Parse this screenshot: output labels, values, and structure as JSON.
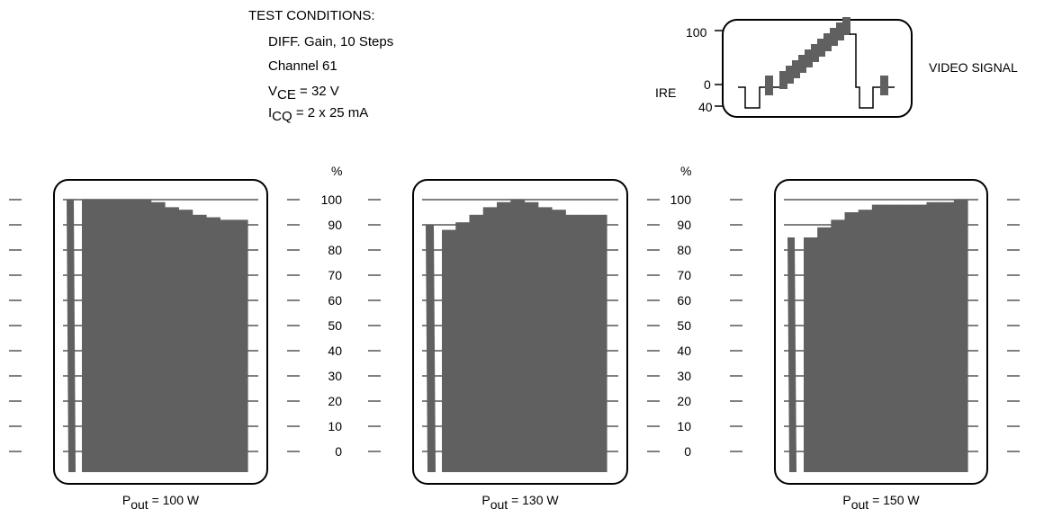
{
  "test_conditions": {
    "heading": "TEST CONDITIONS:",
    "line1": "DIFF. Gain, 10 Steps",
    "line2": "Channel 61",
    "vce_label": "V",
    "vce_sub": "CE",
    "vce_value": " = 32 V",
    "icq_label": "I",
    "icq_sub": "CQ",
    "icq_value": " = 2 x 25 mA"
  },
  "video_signal": {
    "label": "VIDEO SIGNAL",
    "axis_label": "IRE",
    "ticks": [
      "100",
      "0",
      "40"
    ]
  },
  "colors": {
    "bar": "#606060",
    "frame": "#000000",
    "background": "#ffffff"
  },
  "chart_data": [
    {
      "type": "bar",
      "ylabel": "%",
      "ylim": [
        0,
        100
      ],
      "yticks": [
        "100",
        "90",
        "80",
        "70",
        "60",
        "50",
        "40",
        "30",
        "20",
        "10",
        "0"
      ],
      "caption_p": "P",
      "caption_sub": "out",
      "caption_value": " = 100 W",
      "reference_bar": 100,
      "steps": [
        100,
        100,
        100,
        100,
        100,
        99,
        97,
        96,
        94,
        93,
        92,
        92
      ]
    },
    {
      "type": "bar",
      "ylabel": "%",
      "ylim": [
        0,
        100
      ],
      "yticks": [
        "100",
        "90",
        "80",
        "70",
        "60",
        "50",
        "40",
        "30",
        "20",
        "10",
        "0"
      ],
      "caption_p": "P",
      "caption_sub": "out",
      "caption_value": " = 130 W",
      "reference_bar": 90,
      "steps": [
        88,
        91,
        94,
        97,
        99,
        100,
        99,
        97,
        96,
        94,
        94,
        94
      ]
    },
    {
      "type": "bar",
      "ylabel": "%",
      "ylim": [
        0,
        100
      ],
      "yticks": [
        "100",
        "90",
        "80",
        "70",
        "60",
        "50",
        "40",
        "30",
        "20",
        "10",
        "0"
      ],
      "caption_p": "P",
      "caption_sub": "out",
      "caption_value": " = 150 W",
      "reference_bar": 85,
      "steps": [
        85,
        89,
        92,
        95,
        96,
        98,
        98,
        98,
        98,
        99,
        99,
        100
      ]
    }
  ]
}
